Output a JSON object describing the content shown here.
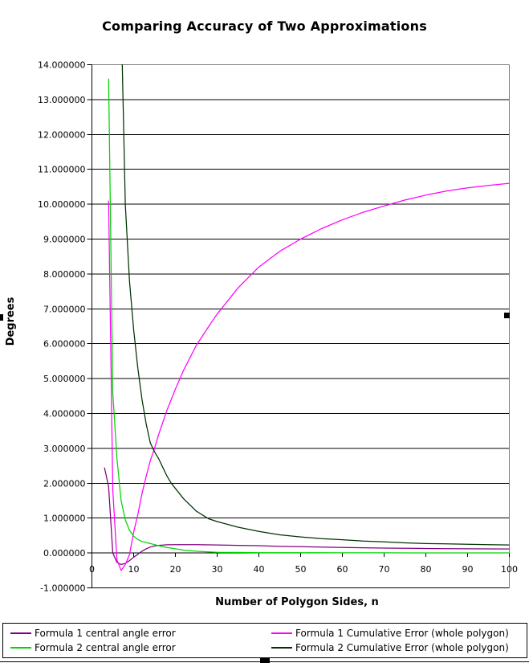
{
  "title": "Comparing Accuracy of Two Approximations",
  "y_axis": {
    "title": "Degrees",
    "min": -1,
    "max": 14,
    "step": 1,
    "decimals": 6
  },
  "x_axis": {
    "title": "Number of Polygon Sides, n",
    "min": 0,
    "max": 100,
    "step": 10
  },
  "colors": {
    "grid": "#000000",
    "plot_border": "#808080",
    "axis": "#000000",
    "background": "#FFFFFF",
    "f1_central": "#7F007F",
    "f1_cumulative": "#FF00FF",
    "f2_central": "#00D500",
    "f2_cumulative": "#003300"
  },
  "legend": {
    "items": [
      {
        "label": "Formula 1 central angle error",
        "color": "#7F007F"
      },
      {
        "label": "Formula 1 Cumulative Error (whole polygon)",
        "color": "#FF00FF"
      },
      {
        "label": "Formula 2 central angle error",
        "color": "#00D500"
      },
      {
        "label": "Formula 2 Cumulative Error (whole polygon)",
        "color": "#003300"
      }
    ]
  },
  "chart_data": {
    "type": "line",
    "title": "Comparing Accuracy of Two Approximations",
    "xlabel": "Number of Polygon Sides, n",
    "ylabel": "Degrees",
    "xlim": [
      0,
      100
    ],
    "ylim": [
      -1,
      14
    ],
    "x_tick_step": 10,
    "y_tick_step": 1,
    "y_tick_decimals": 6,
    "grid": true,
    "legend_position": "bottom",
    "series": [
      {
        "name": "Formula 1 central angle error",
        "color": "#7F007F",
        "points": [
          [
            3,
            2.45
          ],
          [
            4,
            1.9
          ],
          [
            5,
            0
          ],
          [
            6,
            -0.27
          ],
          [
            7,
            -0.33
          ],
          [
            8,
            -0.3
          ],
          [
            9,
            -0.22
          ],
          [
            10,
            -0.12
          ],
          [
            11,
            -0.04
          ],
          [
            12,
            0.05
          ],
          [
            13,
            0.12
          ],
          [
            14,
            0.17
          ],
          [
            15,
            0.2
          ],
          [
            16,
            0.22
          ],
          [
            18,
            0.235
          ],
          [
            20,
            0.24
          ],
          [
            25,
            0.24
          ],
          [
            30,
            0.23
          ],
          [
            35,
            0.22
          ],
          [
            40,
            0.21
          ],
          [
            45,
            0.19
          ],
          [
            50,
            0.18
          ],
          [
            55,
            0.17
          ],
          [
            60,
            0.16
          ],
          [
            65,
            0.15
          ],
          [
            70,
            0.14
          ],
          [
            75,
            0.135
          ],
          [
            80,
            0.13
          ],
          [
            85,
            0.125
          ],
          [
            90,
            0.12
          ],
          [
            95,
            0.118
          ],
          [
            100,
            0.115
          ]
        ]
      },
      {
        "name": "Formula 1 Cumulative Error (whole polygon)",
        "color": "#FF00FF",
        "points": [
          [
            4,
            10.1
          ],
          [
            5,
            1.8
          ],
          [
            6,
            -0.2
          ],
          [
            7,
            -0.5
          ],
          [
            8,
            -0.33
          ],
          [
            9,
            -0.05
          ],
          [
            10,
            0.6
          ],
          [
            11,
            1.1
          ],
          [
            12,
            1.7
          ],
          [
            13,
            2.2
          ],
          [
            14,
            2.65
          ],
          [
            15,
            3
          ],
          [
            16,
            3.4
          ],
          [
            18,
            4.1
          ],
          [
            20,
            4.7
          ],
          [
            22,
            5.25
          ],
          [
            25,
            5.95
          ],
          [
            28,
            6.5
          ],
          [
            30,
            6.85
          ],
          [
            35,
            7.6
          ],
          [
            40,
            8.2
          ],
          [
            45,
            8.65
          ],
          [
            50,
            9
          ],
          [
            55,
            9.3
          ],
          [
            60,
            9.55
          ],
          [
            65,
            9.77
          ],
          [
            70,
            9.95
          ],
          [
            75,
            10.12
          ],
          [
            80,
            10.26
          ],
          [
            85,
            10.38
          ],
          [
            90,
            10.47
          ],
          [
            95,
            10.54
          ],
          [
            100,
            10.6
          ]
        ]
      },
      {
        "name": "Formula 2 central angle error",
        "color": "#00D500",
        "points": [
          [
            4,
            13.6
          ],
          [
            5,
            4.6
          ],
          [
            6,
            2.7
          ],
          [
            7,
            1.5
          ],
          [
            8,
            0.95
          ],
          [
            9,
            0.65
          ],
          [
            10,
            0.48
          ],
          [
            11,
            0.39
          ],
          [
            12,
            0.33
          ],
          [
            13,
            0.3
          ],
          [
            14,
            0.27
          ],
          [
            15,
            0.24
          ],
          [
            16,
            0.21
          ],
          [
            17,
            0.18
          ],
          [
            18,
            0.16
          ],
          [
            19,
            0.14
          ],
          [
            20,
            0.12
          ],
          [
            22,
            0.08
          ],
          [
            25,
            0.05
          ],
          [
            28,
            0.03
          ],
          [
            30,
            0.02
          ],
          [
            35,
            0.015
          ],
          [
            40,
            0.01
          ],
          [
            45,
            0.008
          ],
          [
            50,
            0.007
          ],
          [
            60,
            0.005
          ],
          [
            70,
            0.004
          ],
          [
            80,
            0.003
          ],
          [
            90,
            0.0025
          ],
          [
            100,
            0.002
          ]
        ]
      },
      {
        "name": "Formula 2 Cumulative Error (whole polygon)",
        "color": "#003300",
        "points": [
          [
            6,
            40
          ],
          [
            7,
            15.5
          ],
          [
            8,
            10
          ],
          [
            9,
            7.8
          ],
          [
            10,
            6.4
          ],
          [
            11,
            5.3
          ],
          [
            12,
            4.4
          ],
          [
            13,
            3.7
          ],
          [
            14,
            3.15
          ],
          [
            15,
            2.9
          ],
          [
            16,
            2.7
          ],
          [
            17,
            2.45
          ],
          [
            18,
            2.2
          ],
          [
            19,
            2
          ],
          [
            20,
            1.85
          ],
          [
            22,
            1.55
          ],
          [
            25,
            1.2
          ],
          [
            28,
            0.98
          ],
          [
            30,
            0.9
          ],
          [
            35,
            0.74
          ],
          [
            40,
            0.62
          ],
          [
            45,
            0.52
          ],
          [
            50,
            0.46
          ],
          [
            55,
            0.41
          ],
          [
            60,
            0.38
          ],
          [
            65,
            0.34
          ],
          [
            70,
            0.32
          ],
          [
            75,
            0.29
          ],
          [
            80,
            0.27
          ],
          [
            85,
            0.26
          ],
          [
            90,
            0.25
          ],
          [
            95,
            0.24
          ],
          [
            100,
            0.23
          ]
        ]
      }
    ]
  }
}
